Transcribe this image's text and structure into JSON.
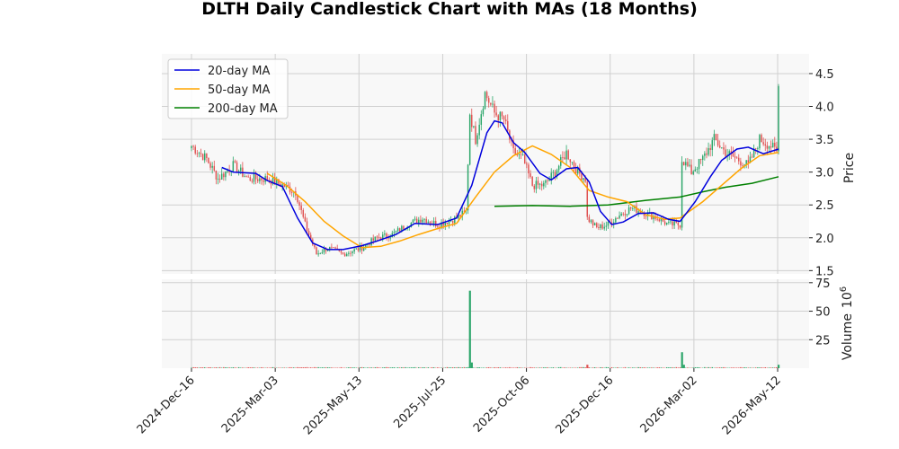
{
  "chart_data": {
    "type": "candlestick",
    "title": "DLTH Daily Candlestick Chart with MAs (18 Months)",
    "price_panel": {
      "ylabel": "Price",
      "ylim": [
        1.45,
        4.8
      ],
      "yticks": [
        "1.5",
        "2.0",
        "2.5",
        "3.0",
        "3.5",
        "4.0",
        "4.5"
      ],
      "grid": true
    },
    "volume_panel": {
      "ylabel": "Volume",
      "ylabel_exponent": "10",
      "ylabel_exponent_power": "6",
      "ylim": [
        0,
        78
      ],
      "yticks": [
        "25",
        "50",
        "75"
      ]
    },
    "x_ticks": [
      "2024-Dec-16",
      "2025-Mar-03",
      "2025-May-13",
      "2025-Jul-25",
      "2025-Oct-06",
      "2025-Dec-16",
      "2026-Mar-02",
      "2026-May-12"
    ],
    "up_color": "#2ca66a",
    "down_color": "#e05252",
    "legend": {
      "position": "upper left",
      "entries": [
        {
          "label": "20-day MA",
          "color": "#0000dd"
        },
        {
          "label": "50-day MA",
          "color": "#ffa500"
        },
        {
          "label": "200-day MA",
          "color": "#008000"
        }
      ]
    },
    "price_anchors": [
      {
        "x": 0,
        "p": 3.4
      },
      {
        "x": 8,
        "p": 3.2
      },
      {
        "x": 14,
        "p": 2.9
      },
      {
        "x": 22,
        "p": 3.1
      },
      {
        "x": 30,
        "p": 2.9
      },
      {
        "x": 40,
        "p": 2.9
      },
      {
        "x": 48,
        "p": 2.8
      },
      {
        "x": 55,
        "p": 2.7
      },
      {
        "x": 60,
        "p": 2.2
      },
      {
        "x": 66,
        "p": 1.75
      },
      {
        "x": 72,
        "p": 1.85
      },
      {
        "x": 80,
        "p": 1.75
      },
      {
        "x": 90,
        "p": 1.85
      },
      {
        "x": 98,
        "p": 2.0
      },
      {
        "x": 106,
        "p": 2.05
      },
      {
        "x": 114,
        "p": 2.2
      },
      {
        "x": 122,
        "p": 2.3
      },
      {
        "x": 130,
        "p": 2.2
      },
      {
        "x": 140,
        "p": 2.3
      },
      {
        "x": 145,
        "p": 2.4
      },
      {
        "x": 147,
        "p": 3.9
      },
      {
        "x": 150,
        "p": 3.5
      },
      {
        "x": 155,
        "p": 4.2
      },
      {
        "x": 160,
        "p": 3.9
      },
      {
        "x": 165,
        "p": 3.8
      },
      {
        "x": 170,
        "p": 3.3
      },
      {
        "x": 175,
        "p": 3.2
      },
      {
        "x": 180,
        "p": 2.8
      },
      {
        "x": 186,
        "p": 2.8
      },
      {
        "x": 192,
        "p": 3.0
      },
      {
        "x": 198,
        "p": 3.3
      },
      {
        "x": 204,
        "p": 3.0
      },
      {
        "x": 208,
        "p": 2.9
      },
      {
        "x": 209,
        "p": 2.3
      },
      {
        "x": 214,
        "p": 2.15
      },
      {
        "x": 220,
        "p": 2.2
      },
      {
        "x": 226,
        "p": 2.35
      },
      {
        "x": 232,
        "p": 2.45
      },
      {
        "x": 238,
        "p": 2.4
      },
      {
        "x": 246,
        "p": 2.3
      },
      {
        "x": 252,
        "p": 2.2
      },
      {
        "x": 258,
        "p": 2.2
      },
      {
        "x": 259,
        "p": 3.2
      },
      {
        "x": 264,
        "p": 3.0
      },
      {
        "x": 270,
        "p": 3.2
      },
      {
        "x": 276,
        "p": 3.5
      },
      {
        "x": 282,
        "p": 3.3
      },
      {
        "x": 288,
        "p": 3.2
      },
      {
        "x": 294,
        "p": 3.1
      },
      {
        "x": 300,
        "p": 3.5
      },
      {
        "x": 306,
        "p": 3.4
      },
      {
        "x": 309,
        "p": 3.3
      },
      {
        "x": 310,
        "p": 4.3
      }
    ],
    "ma20": [
      {
        "x": 16,
        "p": 3.07
      },
      {
        "x": 22,
        "p": 3.0
      },
      {
        "x": 34,
        "p": 2.98
      },
      {
        "x": 40,
        "p": 2.87
      },
      {
        "x": 48,
        "p": 2.78
      },
      {
        "x": 56,
        "p": 2.3
      },
      {
        "x": 64,
        "p": 1.92
      },
      {
        "x": 72,
        "p": 1.82
      },
      {
        "x": 80,
        "p": 1.82
      },
      {
        "x": 90,
        "p": 1.88
      },
      {
        "x": 98,
        "p": 1.95
      },
      {
        "x": 108,
        "p": 2.05
      },
      {
        "x": 118,
        "p": 2.22
      },
      {
        "x": 130,
        "p": 2.2
      },
      {
        "x": 140,
        "p": 2.3
      },
      {
        "x": 148,
        "p": 2.8
      },
      {
        "x": 156,
        "p": 3.6
      },
      {
        "x": 160,
        "p": 3.78
      },
      {
        "x": 164,
        "p": 3.75
      },
      {
        "x": 170,
        "p": 3.45
      },
      {
        "x": 176,
        "p": 3.3
      },
      {
        "x": 184,
        "p": 2.98
      },
      {
        "x": 190,
        "p": 2.88
      },
      {
        "x": 198,
        "p": 3.05
      },
      {
        "x": 204,
        "p": 3.07
      },
      {
        "x": 210,
        "p": 2.85
      },
      {
        "x": 216,
        "p": 2.4
      },
      {
        "x": 222,
        "p": 2.2
      },
      {
        "x": 228,
        "p": 2.24
      },
      {
        "x": 236,
        "p": 2.37
      },
      {
        "x": 244,
        "p": 2.38
      },
      {
        "x": 252,
        "p": 2.28
      },
      {
        "x": 258,
        "p": 2.25
      },
      {
        "x": 266,
        "p": 2.55
      },
      {
        "x": 274,
        "p": 2.93
      },
      {
        "x": 280,
        "p": 3.18
      },
      {
        "x": 288,
        "p": 3.35
      },
      {
        "x": 294,
        "p": 3.38
      },
      {
        "x": 302,
        "p": 3.28
      },
      {
        "x": 310,
        "p": 3.35
      }
    ],
    "ma50": [
      {
        "x": 40,
        "p": 2.98
      },
      {
        "x": 50,
        "p": 2.8
      },
      {
        "x": 60,
        "p": 2.55
      },
      {
        "x": 70,
        "p": 2.25
      },
      {
        "x": 80,
        "p": 2.03
      },
      {
        "x": 90,
        "p": 1.85
      },
      {
        "x": 100,
        "p": 1.87
      },
      {
        "x": 110,
        "p": 1.95
      },
      {
        "x": 120,
        "p": 2.05
      },
      {
        "x": 130,
        "p": 2.14
      },
      {
        "x": 140,
        "p": 2.22
      },
      {
        "x": 150,
        "p": 2.62
      },
      {
        "x": 160,
        "p": 3.0
      },
      {
        "x": 170,
        "p": 3.25
      },
      {
        "x": 180,
        "p": 3.4
      },
      {
        "x": 190,
        "p": 3.27
      },
      {
        "x": 200,
        "p": 3.07
      },
      {
        "x": 210,
        "p": 2.72
      },
      {
        "x": 220,
        "p": 2.62
      },
      {
        "x": 230,
        "p": 2.55
      },
      {
        "x": 240,
        "p": 2.35
      },
      {
        "x": 250,
        "p": 2.28
      },
      {
        "x": 258,
        "p": 2.3
      },
      {
        "x": 270,
        "p": 2.55
      },
      {
        "x": 280,
        "p": 2.8
      },
      {
        "x": 290,
        "p": 3.05
      },
      {
        "x": 300,
        "p": 3.25
      },
      {
        "x": 310,
        "p": 3.3
      }
    ],
    "ma200": [
      {
        "x": 160,
        "p": 2.48
      },
      {
        "x": 180,
        "p": 2.49
      },
      {
        "x": 200,
        "p": 2.48
      },
      {
        "x": 220,
        "p": 2.5
      },
      {
        "x": 240,
        "p": 2.57
      },
      {
        "x": 258,
        "p": 2.62
      },
      {
        "x": 270,
        "p": 2.7
      },
      {
        "x": 282,
        "p": 2.77
      },
      {
        "x": 296,
        "p": 2.83
      },
      {
        "x": 310,
        "p": 2.93
      }
    ],
    "volume_spikes": [
      {
        "x": 147,
        "v": 68,
        "up": true
      },
      {
        "x": 148,
        "v": 5,
        "up": true
      },
      {
        "x": 209,
        "v": 3,
        "up": false
      },
      {
        "x": 259,
        "v": 14,
        "up": true
      },
      {
        "x": 260,
        "v": 3,
        "up": true
      },
      {
        "x": 310,
        "v": 3,
        "up": true
      }
    ]
  }
}
